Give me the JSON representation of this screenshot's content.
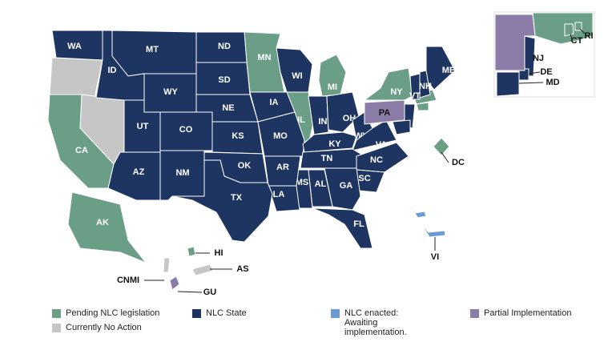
{
  "legend": [
    {
      "label": "Pending NLC legislation",
      "color": "#6a9e87",
      "regions": [
        "MN",
        "MI",
        "IL",
        "NY",
        "CA",
        "AK",
        "HI",
        "DC",
        "CT",
        "RI"
      ]
    },
    {
      "label": "NLC State",
      "color": "#1f3561",
      "regions": [
        "WA",
        "MT",
        "ND",
        "ID",
        "SD",
        "WY",
        "NE",
        "UT",
        "CO",
        "KS",
        "IA",
        "WI",
        "MO",
        "IN",
        "OH",
        "KY",
        "WV",
        "VA",
        "TN",
        "NC",
        "SC",
        "GA",
        "AL",
        "MS",
        "AR",
        "LA",
        "OK",
        "TX",
        "NM",
        "AZ",
        "FL",
        "ME",
        "NH",
        "VT",
        "NJ",
        "DE",
        "MD"
      ]
    },
    {
      "label": "NLC enacted: Awaiting implementation.",
      "color": "#6b9bd2",
      "regions": [
        "VI"
      ]
    },
    {
      "label": "Partial Implementation",
      "color": "#8a7ca6",
      "regions": [
        "PA",
        "GU"
      ]
    },
    {
      "label": "Currently No Action",
      "color": "#c6c6c6",
      "regions": [
        "CNMI",
        "AS"
      ]
    }
  ]
}
